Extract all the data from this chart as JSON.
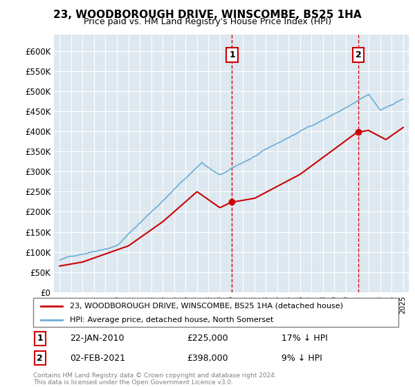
{
  "title": "23, WOODBOROUGH DRIVE, WINSCOMBE, BS25 1HA",
  "subtitle": "Price paid vs. HM Land Registry's House Price Index (HPI)",
  "legend_line1": "23, WOODBOROUGH DRIVE, WINSCOMBE, BS25 1HA (detached house)",
  "legend_line2": "HPI: Average price, detached house, North Somerset",
  "annotation1_label": "1",
  "annotation1_date": "22-JAN-2010",
  "annotation1_price": "£225,000",
  "annotation1_hpi": "17% ↓ HPI",
  "annotation2_label": "2",
  "annotation2_date": "02-FEB-2021",
  "annotation2_price": "£398,000",
  "annotation2_hpi": "9% ↓ HPI",
  "footnote": "Contains HM Land Registry data © Crown copyright and database right 2024.\nThis data is licensed under the Open Government Licence v3.0.",
  "hpi_color": "#6baed6",
  "paid_color": "#cc0000",
  "marker_color": "#cc0000",
  "dashed_color": "#cc0000",
  "background_color": "#dde8f0",
  "ylim": [
    0,
    640000
  ],
  "yticks": [
    0,
    50000,
    100000,
    150000,
    200000,
    250000,
    300000,
    350000,
    400000,
    450000,
    500000,
    550000,
    600000
  ],
  "sale1_year": 2010.06,
  "sale1_value": 225000,
  "sale2_year": 2021.09,
  "sale2_value": 398000
}
